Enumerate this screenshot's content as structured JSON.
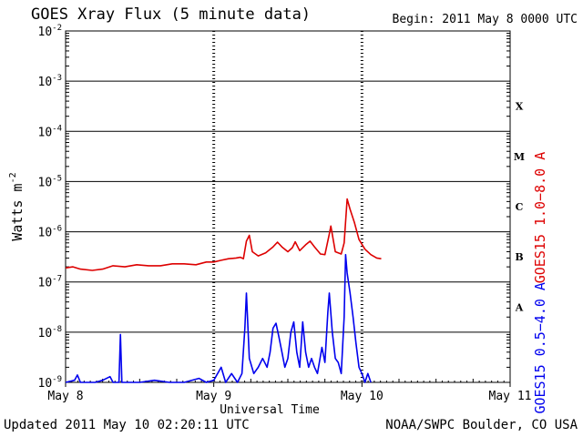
{
  "header": {
    "title": "GOES Xray Flux (5 minute data)",
    "begin": "Begin:  2011 May 8 0000 UTC"
  },
  "footer": {
    "updated": "Updated 2011 May 10 02:20:11 UTC",
    "credit": "NOAA/SWPC Boulder, CO USA"
  },
  "colors": {
    "long_channel": "#dd0000",
    "short_channel": "#0000ee",
    "axes": "#000000"
  },
  "chart_data": {
    "type": "line",
    "title": "GOES Xray Flux (5 minute data)",
    "xlabel": "Universal Time",
    "ylabel": "Watts m",
    "ylabel_exponent": "-2",
    "yscale": "log",
    "ylim": [
      1e-09,
      0.01
    ],
    "xlim_days": [
      0,
      3
    ],
    "x_unit": "days after 2011 May 8 0000 UTC",
    "x_ticks": [
      "May 8",
      "May 9",
      "May 10",
      "May 11"
    ],
    "y_ticks": [
      {
        "base": "10",
        "exp": "-2"
      },
      {
        "base": "10",
        "exp": "-3"
      },
      {
        "base": "10",
        "exp": "-4"
      },
      {
        "base": "10",
        "exp": "-5"
      },
      {
        "base": "10",
        "exp": "-6"
      },
      {
        "base": "10",
        "exp": "-7"
      },
      {
        "base": "10",
        "exp": "-8"
      },
      {
        "base": "10",
        "exp": "-9"
      }
    ],
    "flare_classes": [
      {
        "label": "X",
        "level": 0.0001
      },
      {
        "label": "M",
        "level": 1e-05
      },
      {
        "label": "C",
        "level": 1e-06
      },
      {
        "label": "B",
        "level": 1e-07
      },
      {
        "label": "A",
        "level": 1e-08
      }
    ],
    "grid": true,
    "series": [
      {
        "name": "GOES15 1.0−8.0 A",
        "color": "#dd0000",
        "points": [
          [
            0.0,
            1.9e-07
          ],
          [
            0.05,
            2e-07
          ],
          [
            0.1,
            1.8e-07
          ],
          [
            0.18,
            1.7e-07
          ],
          [
            0.25,
            1.8e-07
          ],
          [
            0.32,
            2.1e-07
          ],
          [
            0.4,
            2e-07
          ],
          [
            0.48,
            2.2e-07
          ],
          [
            0.56,
            2.1e-07
          ],
          [
            0.64,
            2.1e-07
          ],
          [
            0.72,
            2.3e-07
          ],
          [
            0.8,
            2.3e-07
          ],
          [
            0.88,
            2.2e-07
          ],
          [
            0.95,
            2.5e-07
          ],
          [
            1.0,
            2.5e-07
          ],
          [
            1.05,
            2.7e-07
          ],
          [
            1.1,
            2.9e-07
          ],
          [
            1.15,
            3e-07
          ],
          [
            1.18,
            3.1e-07
          ],
          [
            1.2,
            2.9e-07
          ],
          [
            1.22,
            6.5e-07
          ],
          [
            1.24,
            8.5e-07
          ],
          [
            1.26,
            4e-07
          ],
          [
            1.3,
            3.3e-07
          ],
          [
            1.35,
            3.8e-07
          ],
          [
            1.4,
            5e-07
          ],
          [
            1.43,
            6.2e-07
          ],
          [
            1.46,
            5e-07
          ],
          [
            1.5,
            4e-07
          ],
          [
            1.53,
            4.8e-07
          ],
          [
            1.55,
            6.3e-07
          ],
          [
            1.58,
            4.2e-07
          ],
          [
            1.62,
            5.5e-07
          ],
          [
            1.65,
            6.5e-07
          ],
          [
            1.68,
            5e-07
          ],
          [
            1.72,
            3.6e-07
          ],
          [
            1.75,
            3.5e-07
          ],
          [
            1.78,
            9e-07
          ],
          [
            1.79,
            1.3e-06
          ],
          [
            1.82,
            4e-07
          ],
          [
            1.86,
            3.6e-07
          ],
          [
            1.88,
            6e-07
          ],
          [
            1.9,
            4.5e-06
          ],
          [
            1.92,
            2.8e-06
          ],
          [
            1.95,
            1.5e-06
          ],
          [
            1.98,
            7e-07
          ],
          [
            2.02,
            4.5e-07
          ],
          [
            2.06,
            3.5e-07
          ],
          [
            2.1,
            3e-07
          ],
          [
            2.13,
            2.9e-07
          ]
        ]
      },
      {
        "name": "GOES15 0.5−4.0 A",
        "color": "#0000ee",
        "points": [
          [
            0.0,
            1e-09
          ],
          [
            0.06,
            1.1e-09
          ],
          [
            0.08,
            1.4e-09
          ],
          [
            0.1,
            1e-09
          ],
          [
            0.2,
            1e-09
          ],
          [
            0.25,
            1.1e-09
          ],
          [
            0.3,
            1.3e-09
          ],
          [
            0.32,
            1e-09
          ],
          [
            0.36,
            1e-09
          ],
          [
            0.37,
            9e-09
          ],
          [
            0.38,
            1e-09
          ],
          [
            0.5,
            1e-09
          ],
          [
            0.6,
            1.1e-09
          ],
          [
            0.7,
            1e-09
          ],
          [
            0.8,
            1e-09
          ],
          [
            0.9,
            1.2e-09
          ],
          [
            0.95,
            1e-09
          ],
          [
            1.0,
            1.1e-09
          ],
          [
            1.05,
            2e-09
          ],
          [
            1.08,
            1e-09
          ],
          [
            1.12,
            1.5e-09
          ],
          [
            1.16,
            1e-09
          ],
          [
            1.19,
            1.5e-09
          ],
          [
            1.21,
            1.2e-08
          ],
          [
            1.22,
            6e-08
          ],
          [
            1.24,
            3e-09
          ],
          [
            1.27,
            1.5e-09
          ],
          [
            1.3,
            2e-09
          ],
          [
            1.33,
            3e-09
          ],
          [
            1.36,
            2e-09
          ],
          [
            1.38,
            4e-09
          ],
          [
            1.4,
            1.2e-08
          ],
          [
            1.42,
            1.5e-08
          ],
          [
            1.44,
            8e-09
          ],
          [
            1.46,
            4e-09
          ],
          [
            1.48,
            2e-09
          ],
          [
            1.5,
            3e-09
          ],
          [
            1.52,
            1e-08
          ],
          [
            1.54,
            1.6e-08
          ],
          [
            1.56,
            4e-09
          ],
          [
            1.58,
            2e-09
          ],
          [
            1.6,
            1.6e-08
          ],
          [
            1.62,
            4e-09
          ],
          [
            1.64,
            2e-09
          ],
          [
            1.66,
            3e-09
          ],
          [
            1.68,
            2e-09
          ],
          [
            1.7,
            1.5e-09
          ],
          [
            1.73,
            5e-09
          ],
          [
            1.75,
            2.5e-09
          ],
          [
            1.77,
            2.5e-08
          ],
          [
            1.78,
            6e-08
          ],
          [
            1.8,
            1e-08
          ],
          [
            1.82,
            3e-09
          ],
          [
            1.84,
            2.5e-09
          ],
          [
            1.86,
            1.5e-09
          ],
          [
            1.88,
            2e-08
          ],
          [
            1.89,
            3.5e-07
          ],
          [
            1.9,
            1.5e-07
          ],
          [
            1.92,
            6e-08
          ],
          [
            1.94,
            2e-08
          ],
          [
            1.96,
            6e-09
          ],
          [
            1.98,
            2e-09
          ],
          [
            2.0,
            1.5e-09
          ],
          [
            2.02,
            1e-09
          ],
          [
            2.04,
            1.5e-09
          ],
          [
            2.06,
            1e-09
          ]
        ]
      }
    ]
  }
}
